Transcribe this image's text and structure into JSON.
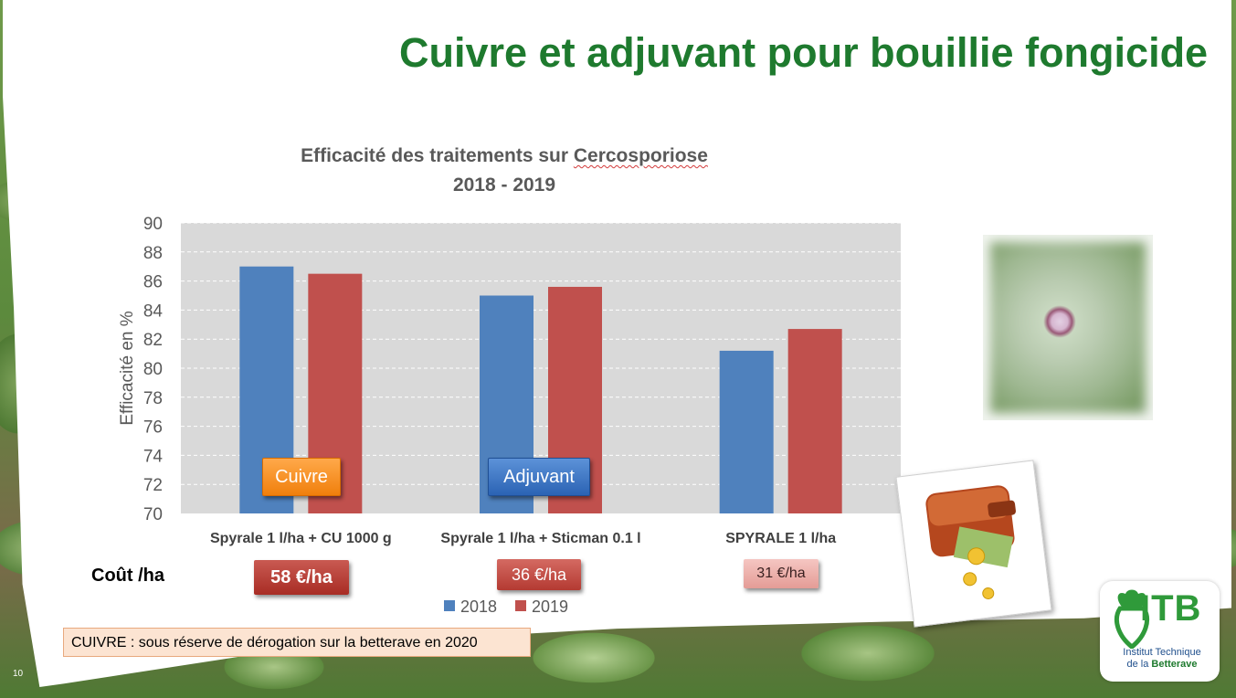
{
  "slide": {
    "title": "Cuivre et adjuvant pour bouillie fongicide",
    "page_number": "10",
    "cost_label": "Coût /ha",
    "costs": [
      "58 €/ha",
      "36 €/ha",
      "31 €/ha"
    ],
    "tags": [
      "Cuivre",
      "Adjuvant"
    ],
    "note": "CUIVRE : sous réserve de dérogation sur la betterave en 2020",
    "logo": {
      "letters": "ITB",
      "line1": "Institut Technique",
      "line2a": "de la",
      "line2b": "Betterave"
    }
  },
  "chart_data": {
    "type": "bar",
    "title_line1_prefix": "Efficacité des traitements sur ",
    "title_line1_word": "Cercosporiose",
    "title_line2": "2018 - 2019",
    "ylabel": "Efficacité en %",
    "xlabel": "",
    "ylim": [
      70,
      90
    ],
    "yticks": [
      70,
      72,
      74,
      76,
      78,
      80,
      82,
      84,
      86,
      88,
      90
    ],
    "grid": true,
    "legend_position": "bottom",
    "categories": [
      "Spyrale 1 l/ha + CU 1000 g",
      "Spyrale 1 l/ha + Sticman 0.1 l",
      "SPYRALE 1 l/ha"
    ],
    "series": [
      {
        "name": "2018",
        "color": "#4f81bd",
        "values": [
          87.0,
          85.0,
          81.2
        ]
      },
      {
        "name": "2019",
        "color": "#c0504d",
        "values": [
          86.5,
          85.6,
          82.7
        ]
      }
    ],
    "plot_background": "#d9d9d9"
  }
}
